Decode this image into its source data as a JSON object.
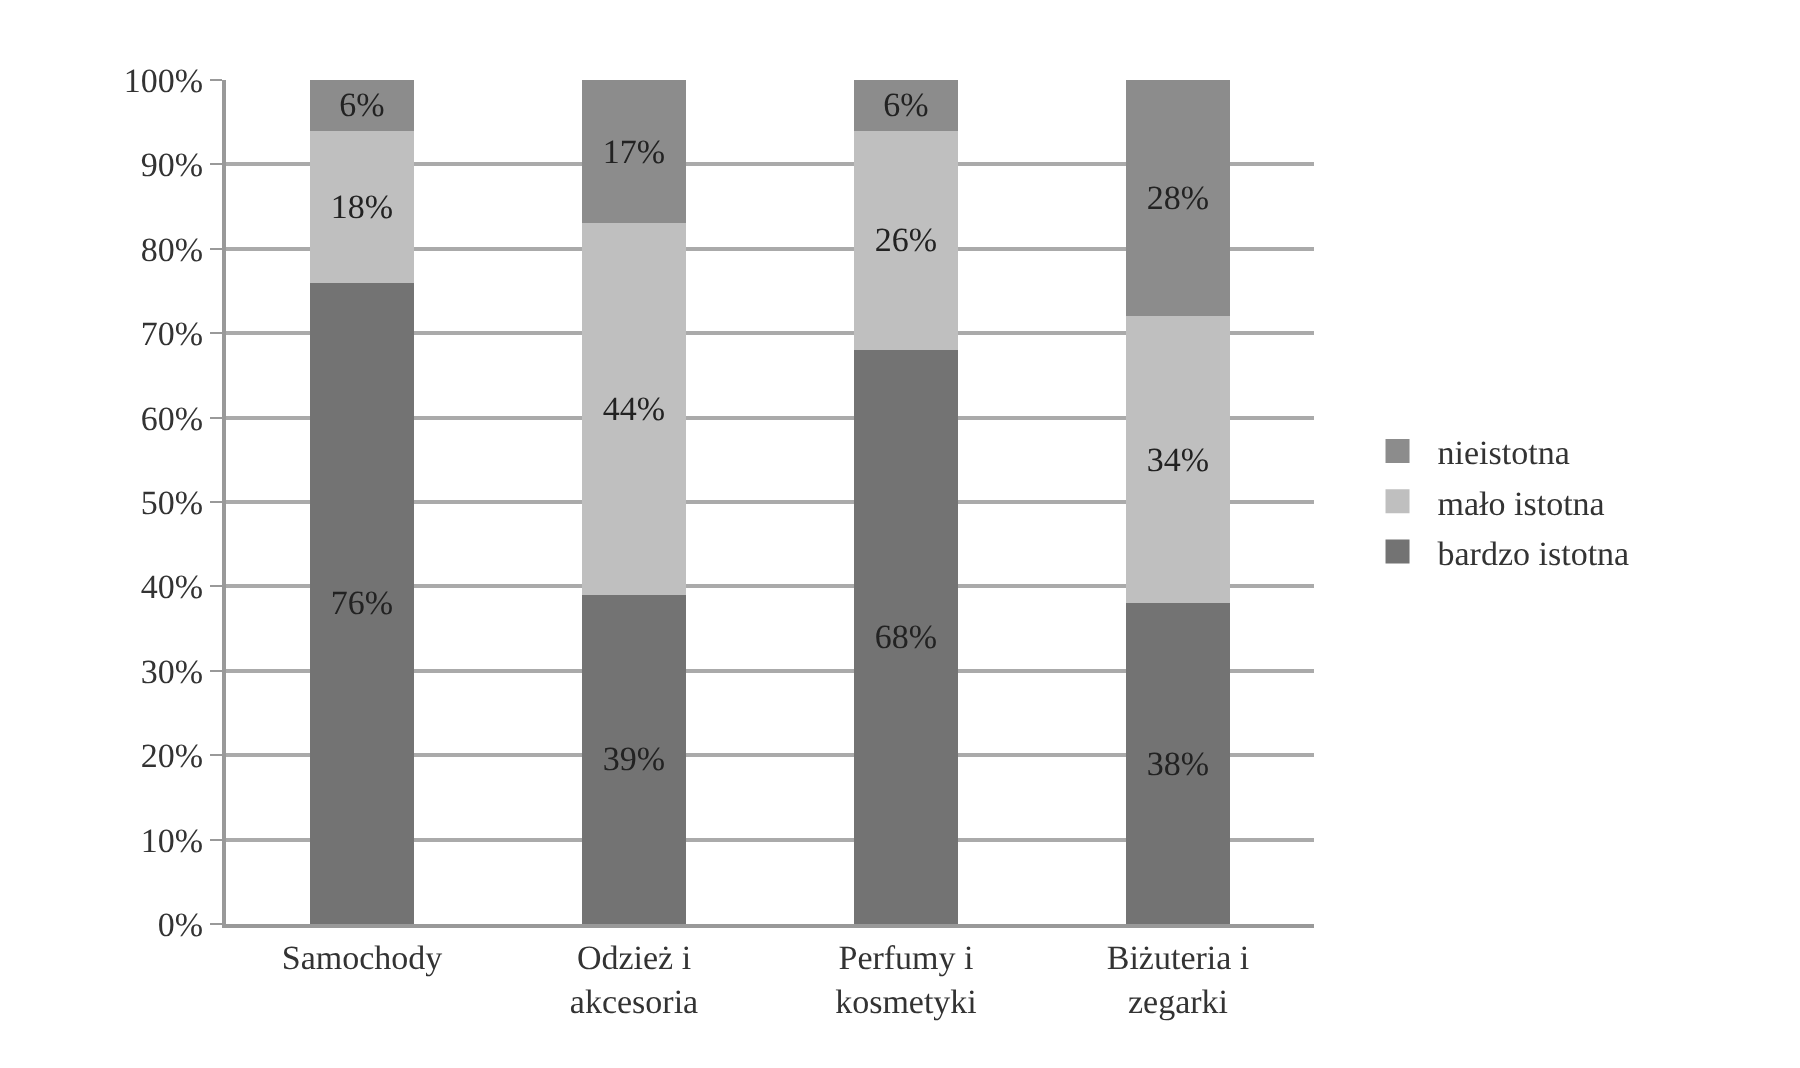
{
  "chart_data": {
    "type": "bar",
    "stacked": true,
    "categories": [
      "Samochody",
      "Odzież i akcesoria",
      "Perfumy i kosmetyki",
      "Biżuteria i zegarki"
    ],
    "series": [
      {
        "name": "bardzo istotna",
        "color": "#737373",
        "values": [
          76,
          39,
          68,
          38
        ],
        "value_labels": [
          "76%",
          "39%",
          "68%",
          "38%"
        ]
      },
      {
        "name": "mało istotna",
        "color": "#bfbfbf",
        "values": [
          18,
          44,
          26,
          34
        ],
        "value_labels": [
          "18%",
          "44%",
          "26%",
          "34%"
        ]
      },
      {
        "name": "nieistotna",
        "color": "#8c8c8c",
        "values": [
          6,
          17,
          6,
          28
        ],
        "value_labels": [
          "6%",
          "17%",
          "6%",
          "28%"
        ]
      }
    ],
    "ylim": [
      0,
      100
    ],
    "yticks": [
      {
        "value": 0,
        "label": "0%"
      },
      {
        "value": 10,
        "label": "10%"
      },
      {
        "value": 20,
        "label": "20%"
      },
      {
        "value": 30,
        "label": "30%"
      },
      {
        "value": 40,
        "label": "40%"
      },
      {
        "value": 50,
        "label": "50%"
      },
      {
        "value": 60,
        "label": "60%"
      },
      {
        "value": 70,
        "label": "70%"
      },
      {
        "value": 80,
        "label": "80%"
      },
      {
        "value": 90,
        "label": "90%"
      },
      {
        "value": 100,
        "label": "100%"
      }
    ],
    "grid": "y",
    "legend": "right"
  }
}
